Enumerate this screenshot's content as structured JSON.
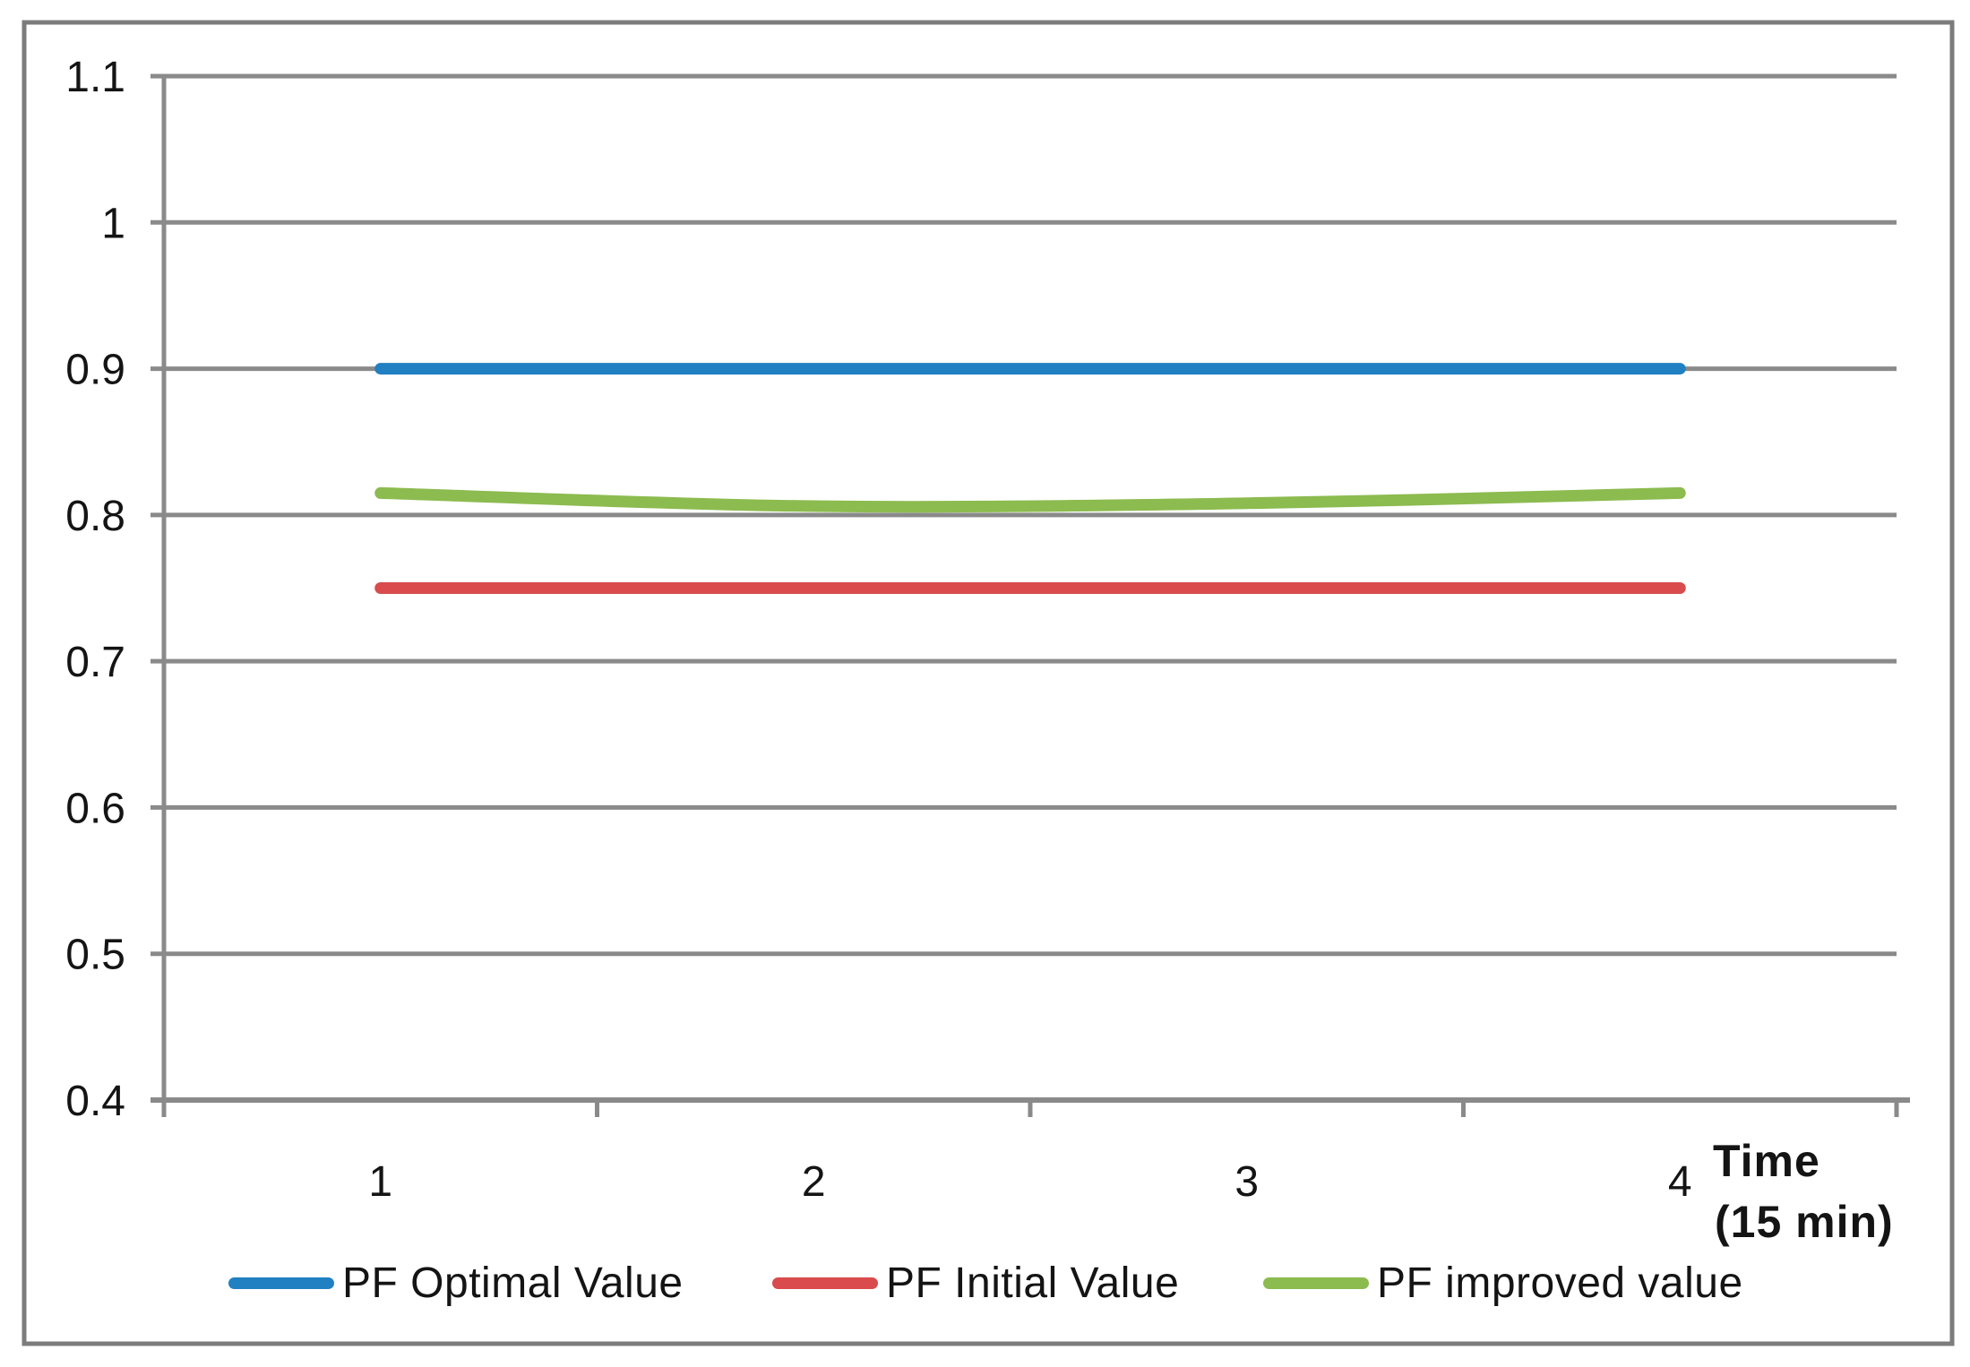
{
  "chart_data": {
    "type": "line",
    "x": [
      "1",
      "2",
      "3",
      "4"
    ],
    "series": [
      {
        "name": "PF Optimal Value",
        "color": "#2080C2",
        "values": [
          0.9,
          0.9,
          0.9,
          0.9
        ]
      },
      {
        "name": "PF Initial Value",
        "color": "#D94B4C",
        "values": [
          0.75,
          0.75,
          0.75,
          0.75
        ]
      },
      {
        "name": "PF improved value",
        "color": "#8CBB4F",
        "values": [
          0.815,
          0.806,
          0.808,
          0.815
        ]
      }
    ],
    "title": "",
    "xlabel": "Time (15 min)",
    "xlabel_line1": "Time",
    "xlabel_line2": "(15 min)",
    "ylabel": "",
    "ylim": [
      0.4,
      1.1
    ],
    "y_ticks": [
      0.4,
      0.5,
      0.6,
      0.7,
      0.8,
      0.9,
      1,
      1.1
    ],
    "y_tick_labels": [
      "0.4",
      "0.5",
      "0.6",
      "0.7",
      "0.8",
      "0.9",
      "1",
      "1.1"
    ],
    "grid": true,
    "legend_position": "bottom",
    "line_smooth": true,
    "colors": {
      "grid": "#8A8A8A",
      "axis": "#8A8A8A",
      "border": "#7C7C7C",
      "text": "#141414",
      "background": "#FFFFFF"
    }
  }
}
